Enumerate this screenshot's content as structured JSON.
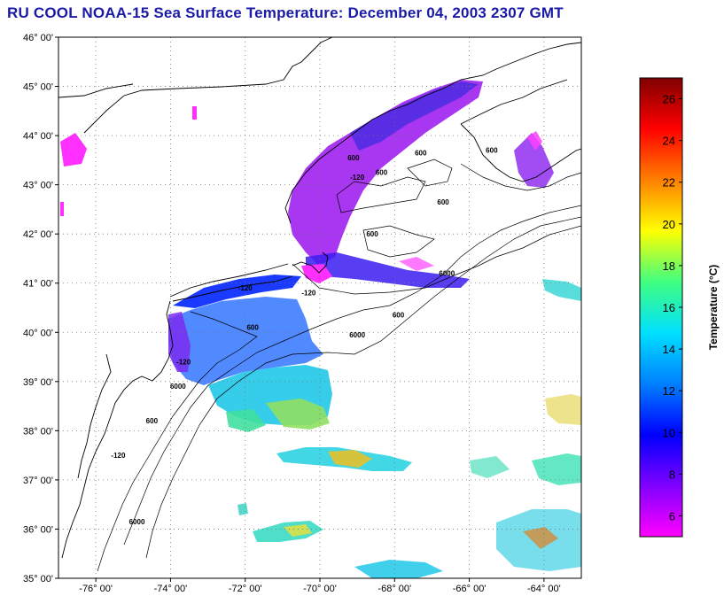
{
  "title": "RU COOL  NOAA-15  Sea Surface Temperature:  December 04, 2003 2307 GMT",
  "map": {
    "lon_range": [
      -77,
      -63
    ],
    "lat_range": [
      35,
      46
    ],
    "grid": true,
    "lat_ticks": [
      {
        "value": 46,
        "label": "46° 00'"
      },
      {
        "value": 45,
        "label": "45° 00'"
      },
      {
        "value": 44,
        "label": "44° 00'"
      },
      {
        "value": 43,
        "label": "43° 00'"
      },
      {
        "value": 42,
        "label": "42° 00'"
      },
      {
        "value": 41,
        "label": "41° 00'"
      },
      {
        "value": 40,
        "label": "40° 00'"
      },
      {
        "value": 39,
        "label": "39° 00'"
      },
      {
        "value": 38,
        "label": "38° 00'"
      },
      {
        "value": 37,
        "label": "37° 00'"
      },
      {
        "value": 36,
        "label": "36° 00'"
      },
      {
        "value": 35,
        "label": "35° 00'"
      }
    ],
    "lon_ticks": [
      {
        "value": -76,
        "label": "-76° 00'"
      },
      {
        "value": -74,
        "label": "-74° 00'"
      },
      {
        "value": -72,
        "label": "-72° 00'"
      },
      {
        "value": -70,
        "label": "-70° 00'"
      },
      {
        "value": -68,
        "label": "-68° 00'"
      },
      {
        "value": -66,
        "label": "-66° 00'"
      },
      {
        "value": -64,
        "label": "-64° 00'"
      }
    ],
    "contour_labels": [
      {
        "text": "-120",
        "lon": -72.0,
        "lat": 40.85
      },
      {
        "text": "-120",
        "lon": -70.3,
        "lat": 40.75
      },
      {
        "text": "-120",
        "lon": -73.65,
        "lat": 39.35
      },
      {
        "text": "-120",
        "lon": -75.4,
        "lat": 37.45
      },
      {
        "text": "-120",
        "lon": -69.0,
        "lat": 43.1
      },
      {
        "text": "600",
        "lon": -71.8,
        "lat": 40.05
      },
      {
        "text": "600",
        "lon": -68.6,
        "lat": 41.95
      },
      {
        "text": "600",
        "lon": -67.9,
        "lat": 40.3
      },
      {
        "text": "600",
        "lon": -69.1,
        "lat": 43.5
      },
      {
        "text": "600",
        "lon": -68.35,
        "lat": 43.2
      },
      {
        "text": "600",
        "lon": -67.3,
        "lat": 43.6
      },
      {
        "text": "600",
        "lon": -66.7,
        "lat": 42.6
      },
      {
        "text": "600",
        "lon": -65.4,
        "lat": 43.65
      },
      {
        "text": "600",
        "lon": -74.5,
        "lat": 38.15
      },
      {
        "text": "6000",
        "lon": -69.0,
        "lat": 39.9
      },
      {
        "text": "6000",
        "lon": -73.8,
        "lat": 38.85
      },
      {
        "text": "6000",
        "lon": -66.6,
        "lat": 41.15
      },
      {
        "text": "6000",
        "lon": -74.9,
        "lat": 36.1
      }
    ]
  },
  "colorbar": {
    "title": "Temperature (°C)",
    "min": 5,
    "max": 27,
    "ticks": [
      "6",
      "8",
      "10",
      "12",
      "14",
      "16",
      "18",
      "20",
      "22",
      "24",
      "26"
    ],
    "stops": [
      "#ff00ff",
      "#8000ff",
      "#0000ff",
      "#0080ff",
      "#00e0ff",
      "#40ff80",
      "#ffff00",
      "#ff8000",
      "#ff0000",
      "#800000"
    ]
  }
}
